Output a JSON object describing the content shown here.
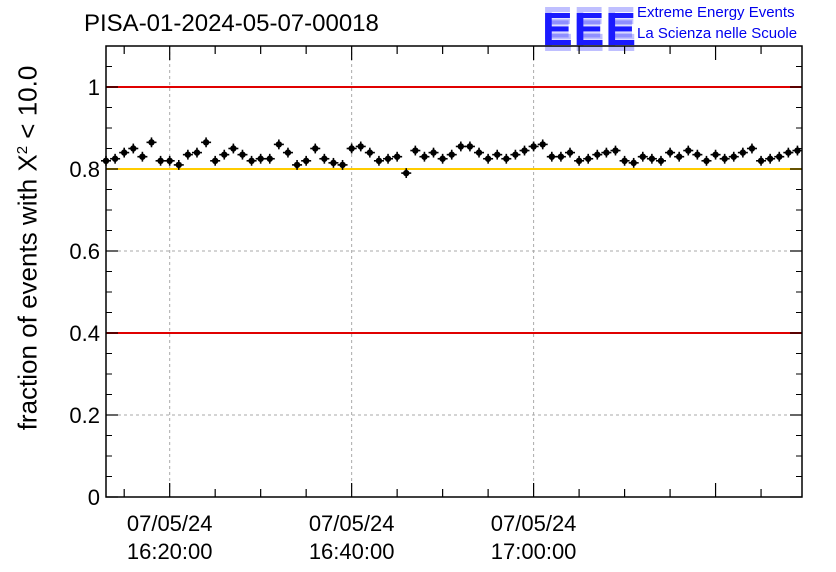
{
  "header": {
    "title": "PISA-01-2024-05-07-00018",
    "logo_text": "EEE",
    "brand_line1": "Extreme Energy Events",
    "brand_line2": "La Scienza nelle Scuole"
  },
  "chart_data": {
    "type": "scatter",
    "title": "PISA-01-2024-05-07-00018",
    "ylabel_main": "fraction of events with X",
    "ylabel_sup": "2",
    "ylabel_tail": " < 10.0",
    "ylim": [
      0,
      1.1
    ],
    "yticks": [
      0,
      0.2,
      0.4,
      0.6,
      0.8,
      1
    ],
    "ytick_labels": [
      "0",
      "0.2",
      "0.4",
      "0.6",
      "0.8",
      "1"
    ],
    "xlim": [
      "16:13:00",
      "17:29:30"
    ],
    "xticks": [
      {
        "time": "16:20:00",
        "date": "07/05/24"
      },
      {
        "time": "16:40:00",
        "date": "07/05/24"
      },
      {
        "time": "17:00:00",
        "date": "07/05/24"
      }
    ],
    "grid": true,
    "ref_lines": [
      {
        "y": 1.0,
        "color": "#e00000"
      },
      {
        "y": 0.8,
        "color": "#ffcc00"
      },
      {
        "y": 0.4,
        "color": "#e00000"
      }
    ],
    "series": [
      {
        "x": [
          "16:13:00",
          "16:14:00",
          "16:15:00",
          "16:16:00",
          "16:17:00",
          "16:18:00",
          "16:19:00",
          "16:20:00",
          "16:21:00",
          "16:22:00",
          "16:23:00",
          "16:24:00",
          "16:25:00",
          "16:26:00",
          "16:27:00",
          "16:28:00",
          "16:29:00",
          "16:30:00",
          "16:31:00",
          "16:32:00",
          "16:33:00",
          "16:34:00",
          "16:35:00",
          "16:36:00",
          "16:37:00",
          "16:38:00",
          "16:39:00",
          "16:40:00",
          "16:41:00",
          "16:42:00",
          "16:43:00",
          "16:44:00",
          "16:45:00",
          "16:46:00",
          "16:47:00",
          "16:48:00",
          "16:49:00",
          "16:50:00",
          "16:51:00",
          "16:52:00",
          "16:53:00",
          "16:54:00",
          "16:55:00",
          "16:56:00",
          "16:57:00",
          "16:58:00",
          "16:59:00",
          "17:00:00",
          "17:01:00",
          "17:02:00",
          "17:03:00",
          "17:04:00",
          "17:05:00",
          "17:06:00",
          "17:07:00",
          "17:08:00",
          "17:09:00",
          "17:10:00",
          "17:11:00",
          "17:12:00",
          "17:13:00",
          "17:14:00",
          "17:15:00",
          "17:16:00",
          "17:17:00",
          "17:18:00",
          "17:19:00",
          "17:20:00",
          "17:21:00",
          "17:22:00",
          "17:23:00",
          "17:24:00",
          "17:25:00",
          "17:26:00",
          "17:27:00",
          "17:28:00",
          "17:29:00"
        ],
        "y": [
          0.82,
          0.825,
          0.84,
          0.85,
          0.83,
          0.865,
          0.82,
          0.82,
          0.81,
          0.835,
          0.84,
          0.865,
          0.82,
          0.835,
          0.85,
          0.835,
          0.82,
          0.825,
          0.825,
          0.86,
          0.84,
          0.81,
          0.82,
          0.85,
          0.825,
          0.815,
          0.81,
          0.85,
          0.855,
          0.84,
          0.82,
          0.825,
          0.83,
          0.79,
          0.845,
          0.83,
          0.84,
          0.825,
          0.835,
          0.855,
          0.855,
          0.84,
          0.825,
          0.835,
          0.825,
          0.835,
          0.845,
          0.855,
          0.86,
          0.83,
          0.83,
          0.84,
          0.82,
          0.825,
          0.835,
          0.84,
          0.845,
          0.82,
          0.815,
          0.83,
          0.825,
          0.82,
          0.84,
          0.83,
          0.845,
          0.835,
          0.82,
          0.835,
          0.825,
          0.83,
          0.84,
          0.85,
          0.82,
          0.825,
          0.83,
          0.84,
          0.845
        ],
        "yerr": 0.012
      }
    ]
  }
}
